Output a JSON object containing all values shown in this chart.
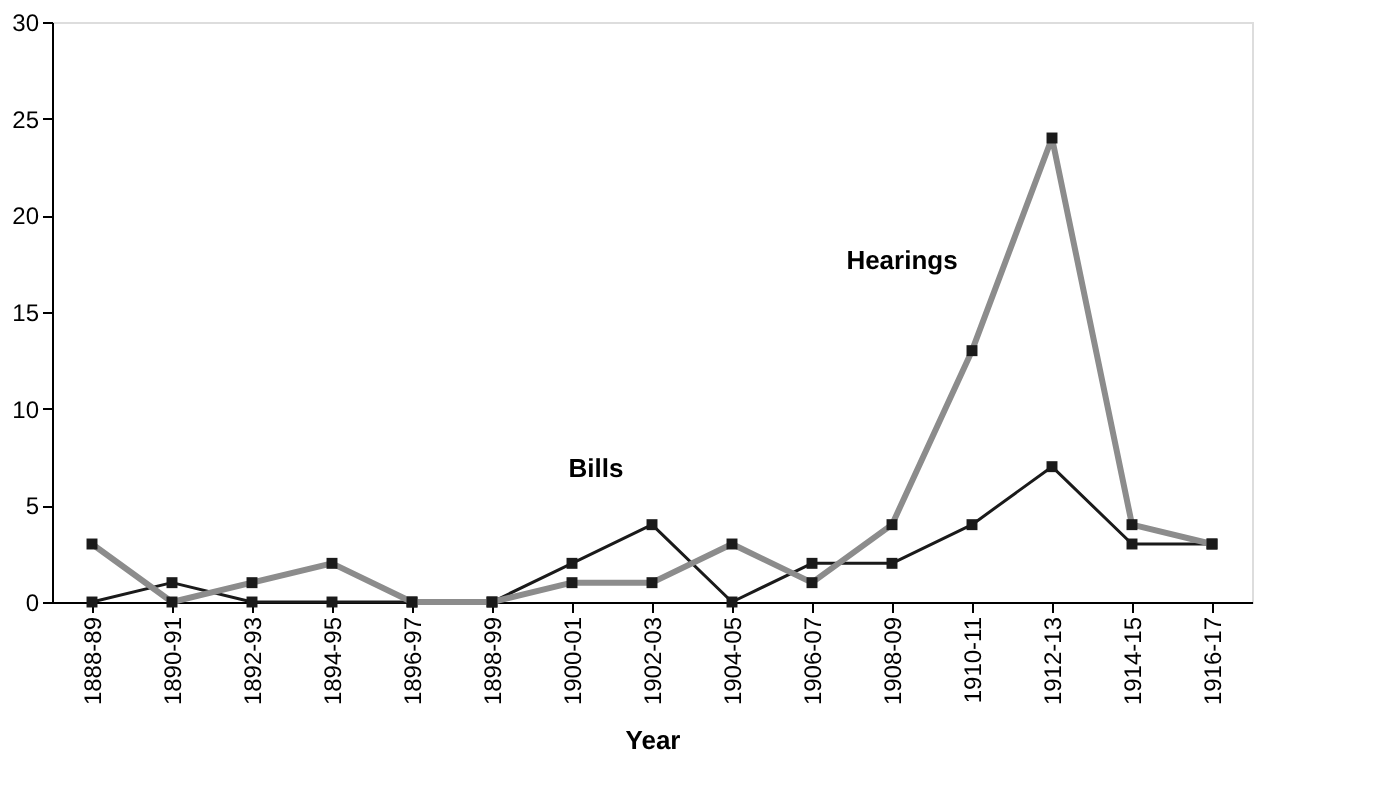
{
  "chart_data": {
    "type": "line",
    "xlabel": "Year",
    "categories": [
      "1888-89",
      "1890-91",
      "1892-93",
      "1894-95",
      "1896-97",
      "1898-99",
      "1900-01",
      "1902-03",
      "1904-05",
      "1906-07",
      "1908-09",
      "1910-11",
      "1912-13",
      "1914-15",
      "1916-17"
    ],
    "series": [
      {
        "name": "Bills",
        "color": "#1a1a1a",
        "values": [
          0,
          1,
          0,
          0,
          0,
          0,
          2,
          4,
          0,
          2,
          2,
          4,
          7,
          3,
          3
        ]
      },
      {
        "name": "Hearings",
        "color": "#8c8c8c",
        "values": [
          3,
          0,
          1,
          2,
          0,
          0,
          1,
          1,
          3,
          1,
          4,
          13,
          24,
          4,
          3
        ]
      }
    ],
    "ylim": [
      0,
      30
    ],
    "yticks": [
      0,
      5,
      10,
      15,
      20,
      25,
      30
    ],
    "grid": false,
    "marker": "square",
    "line_style": "solid",
    "legend": false
  }
}
